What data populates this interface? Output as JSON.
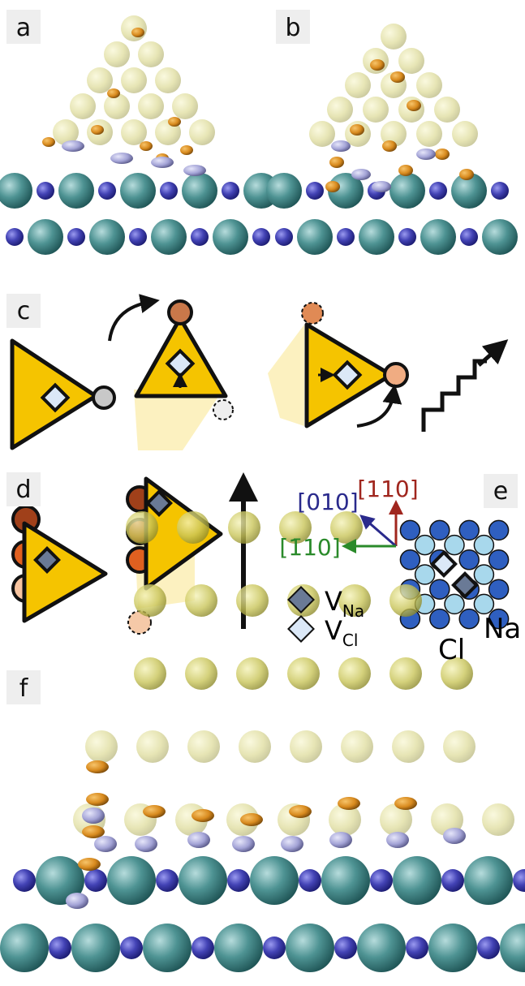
{
  "panels": {
    "a": "a",
    "b": "b",
    "c": "c",
    "d": "d",
    "e": "e",
    "f": "f"
  },
  "directions": {
    "red": "[110]",
    "blue": "[010]",
    "green": "[1̄10]"
  },
  "legend": [
    {
      "symbol": "V",
      "sub": "Na"
    },
    {
      "symbol": "V",
      "sub": "Cl"
    }
  ],
  "lattice_labels": {
    "cl": "Cl",
    "na": "Na"
  }
}
